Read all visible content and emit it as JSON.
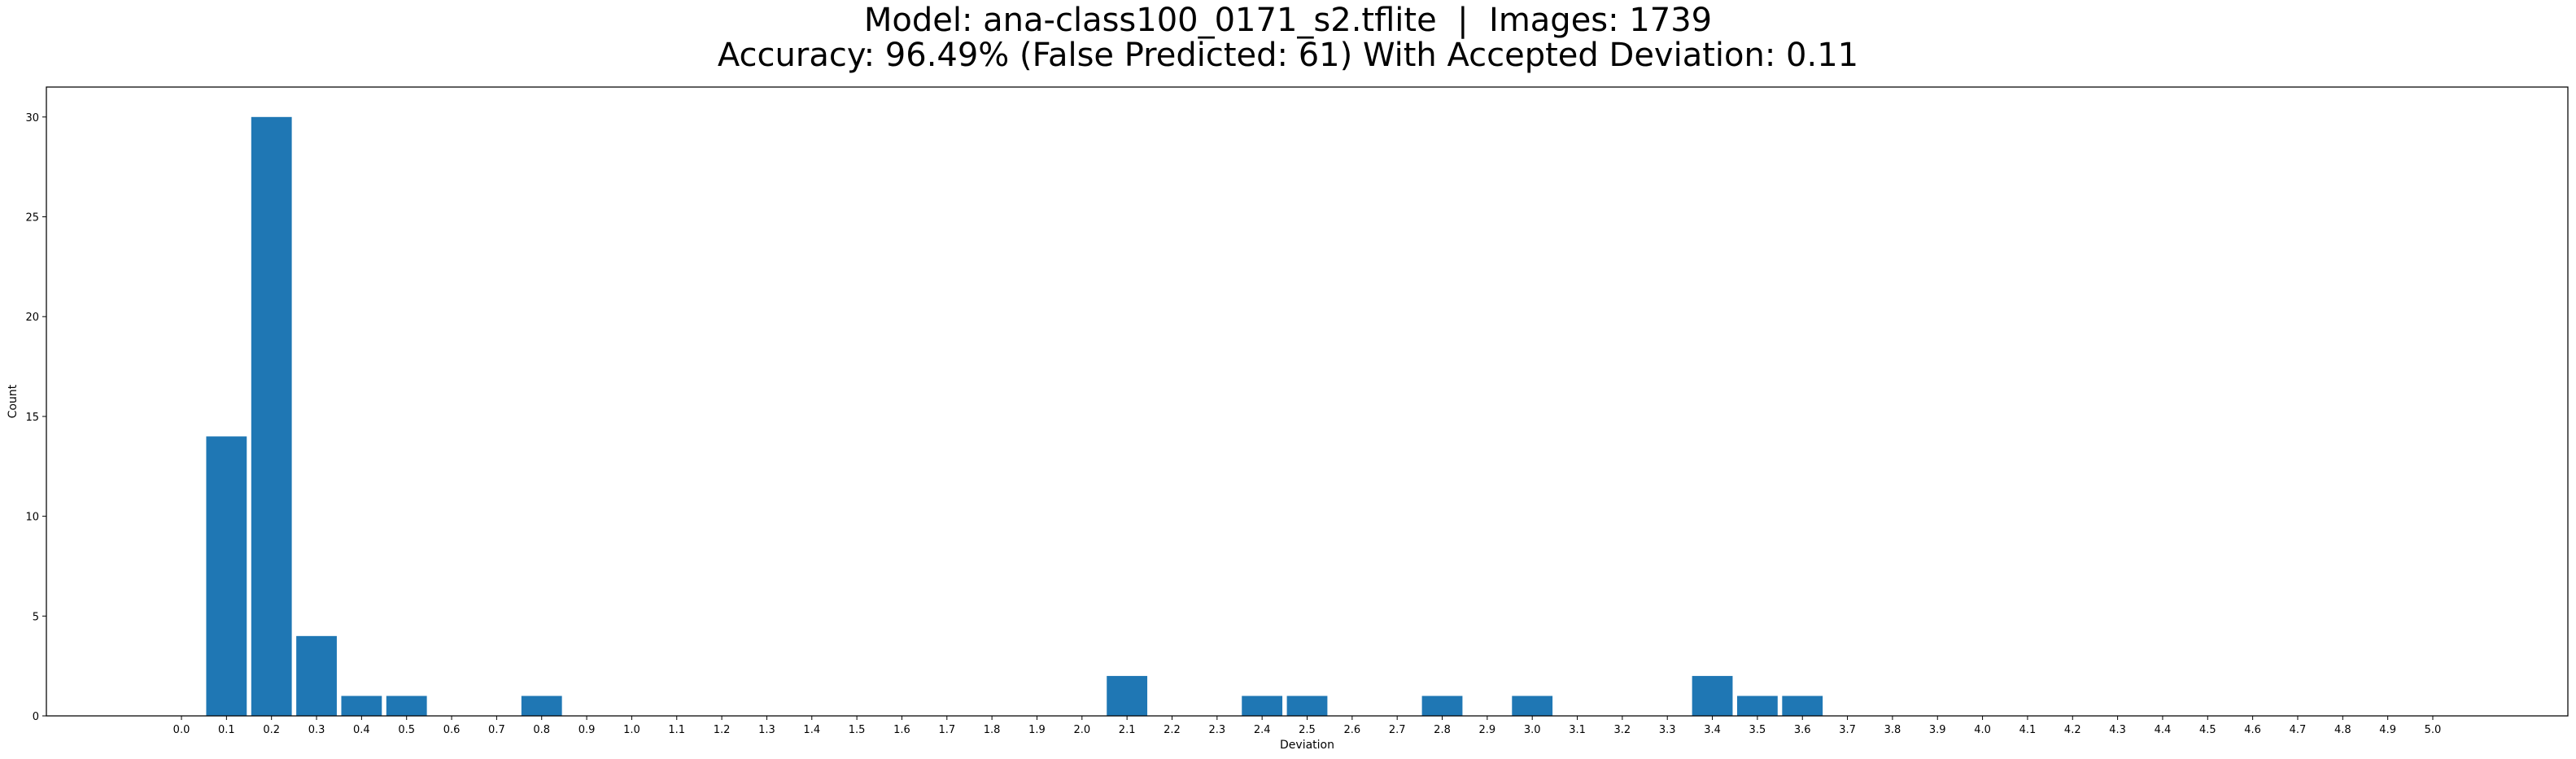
{
  "chart_data": {
    "type": "bar",
    "title": [
      "Model: ana-class100_0171_s2.tflite  |  Images: 1739",
      "Accuracy: 96.49% (False Predicted: 61) With Accepted Deviation: 0.11"
    ],
    "xlabel": "Deviation",
    "ylabel": "Count",
    "x_ticks": [
      "0.0",
      "0.1",
      "0.2",
      "0.3",
      "0.4",
      "0.5",
      "0.6",
      "0.7",
      "0.8",
      "0.9",
      "1.0",
      "1.1",
      "1.2",
      "1.3",
      "1.4",
      "1.5",
      "1.6",
      "1.7",
      "1.8",
      "1.9",
      "2.0",
      "2.1",
      "2.2",
      "2.3",
      "2.4",
      "2.5",
      "2.6",
      "2.7",
      "2.8",
      "2.9",
      "3.0",
      "3.1",
      "3.2",
      "3.3",
      "3.4",
      "3.5",
      "3.6",
      "3.7",
      "3.8",
      "3.9",
      "4.0",
      "4.1",
      "4.2",
      "4.3",
      "4.4",
      "4.5",
      "4.6",
      "4.7",
      "4.8",
      "4.9",
      "5.0"
    ],
    "y_ticks": [
      0,
      5,
      10,
      15,
      20,
      25,
      30
    ],
    "xlim": [
      -0.3,
      5.3
    ],
    "ylim": [
      0,
      31.5
    ],
    "bar_width": 0.09,
    "bar_color": "#1f77b4",
    "grid": false,
    "legend": "none",
    "series": [
      {
        "x": [
          0.1,
          0.2,
          0.3,
          0.4,
          0.5,
          0.8,
          2.1,
          2.4,
          2.5,
          2.8,
          3.0,
          3.4,
          3.5,
          3.6
        ],
        "values": [
          14,
          30,
          4,
          1,
          1,
          1,
          2,
          1,
          1,
          1,
          1,
          2,
          1,
          1
        ]
      }
    ]
  }
}
